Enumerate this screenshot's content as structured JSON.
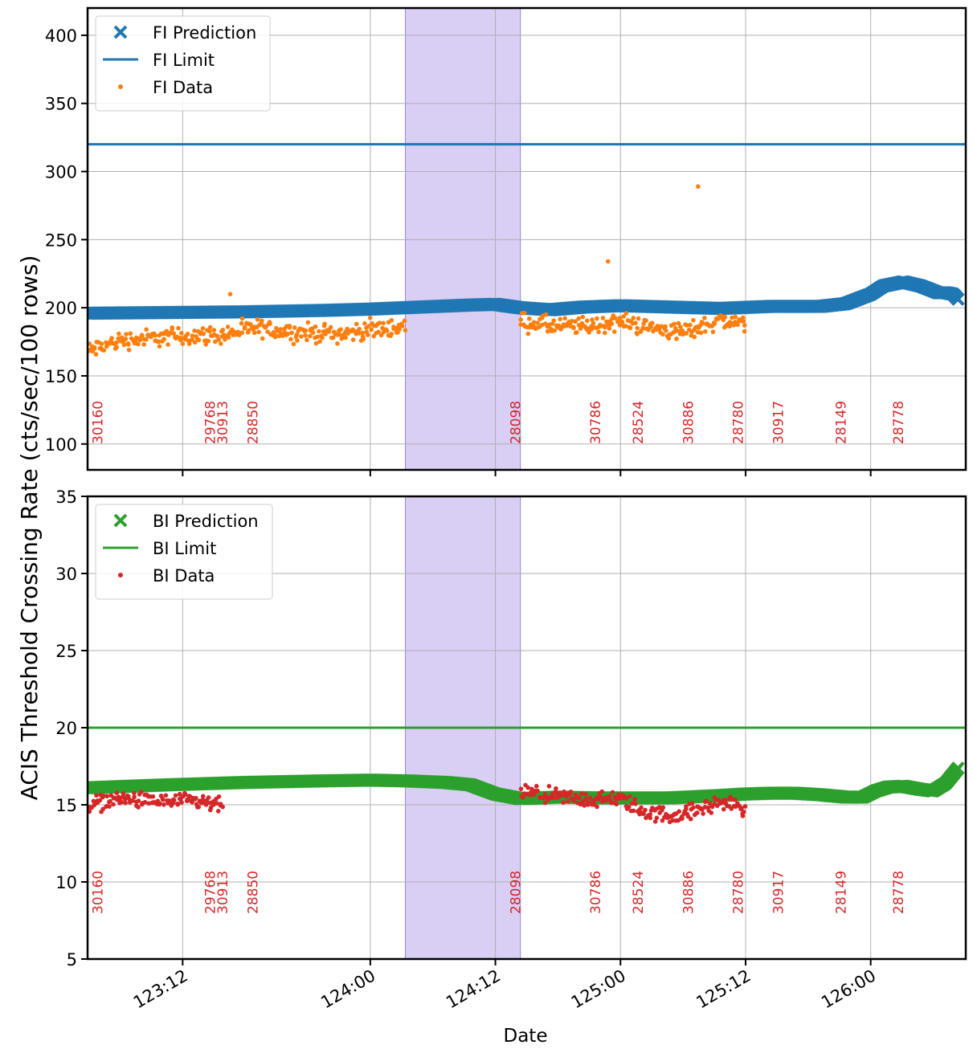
{
  "chart_data": {
    "type": "scatter",
    "xlabel": "Date",
    "ylabel": "ACIS Threshold Crossing Rate (cts/sec/100 rows)",
    "x_unit": "days",
    "xlim": [
      122.87,
      126.38
    ],
    "x_ticks": [
      {
        "value": 123.25,
        "label": "123:12"
      },
      {
        "value": 124.0,
        "label": "124:00"
      },
      {
        "value": 124.5,
        "label": "124:12"
      },
      {
        "value": 125.0,
        "label": "125:00"
      },
      {
        "value": 125.5,
        "label": "125:12"
      },
      {
        "value": 126.0,
        "label": "126:00"
      }
    ],
    "shaded_interval": {
      "start": 124.14,
      "end": 124.6,
      "color": "#9370db"
    },
    "grid": true,
    "legend_position": "upper-left",
    "panels": [
      {
        "name": "FI",
        "ylim": [
          81,
          420
        ],
        "y_ticks": [
          100,
          150,
          200,
          250,
          300,
          350,
          400
        ],
        "legend": [
          "FI Prediction",
          "FI Limit",
          "FI Data"
        ],
        "series": [
          {
            "name": "FI Prediction",
            "color": "#1f77b4",
            "marker": "x",
            "x": [
              122.87,
              123.2,
              123.5,
              123.8,
              124.0,
              124.2,
              124.4,
              124.5,
              124.6,
              124.72,
              124.85,
              125.0,
              125.2,
              125.4,
              125.6,
              125.8,
              125.9,
              126.0,
              126.05,
              126.13,
              126.2,
              126.27,
              126.3,
              126.33,
              126.35
            ],
            "y": [
              196,
              196.5,
              197,
              198,
              199,
              200.5,
              202,
              202.5,
              200,
              198.5,
              200.5,
              201.5,
              200.5,
              199.5,
              201,
              201,
              203,
              210,
              216,
              219,
              216,
              211,
              211,
              210,
              206
            ]
          },
          {
            "name": "FI Limit",
            "color": "#1f77b4",
            "line": true,
            "y": 320
          },
          {
            "name": "FI Data",
            "color": "#ff7f0e",
            "marker": "point",
            "segments": [
              {
                "x": [
                  122.87,
                  123.0,
                  123.2,
                  123.4,
                  123.55,
                  123.7,
                  123.9,
                  124.0,
                  124.14
                ],
                "y": [
                  168,
                  176,
                  179,
                  180,
                  185,
                  182,
                  181,
                  184,
                  186
                ]
              },
              {
                "x": [
                  124.6,
                  124.75,
                  124.9,
                  125.0,
                  125.1,
                  125.25,
                  125.4,
                  125.5
                ],
                "y": [
                  190,
                  186,
                  187,
                  190,
                  186,
                  182,
                  191,
                  188
                ]
              }
            ],
            "outliers": [
              {
                "x": [
                  123.44,
                  124.95,
                  125.31
                ],
                "y": [
                  210,
                  234,
                  289
                ]
              }
            ]
          }
        ],
        "obsids": [
          {
            "x": 122.91,
            "label": "30160"
          },
          {
            "x": 123.36,
            "label": "29768"
          },
          {
            "x": 123.41,
            "label": "30913"
          },
          {
            "x": 123.53,
            "label": "28850"
          },
          {
            "x": 124.58,
            "label": "28098"
          },
          {
            "x": 124.9,
            "label": "30786"
          },
          {
            "x": 125.07,
            "label": "28524"
          },
          {
            "x": 125.27,
            "label": "30886"
          },
          {
            "x": 125.47,
            "label": "28780"
          },
          {
            "x": 125.63,
            "label": "30917"
          },
          {
            "x": 125.88,
            "label": "28149"
          },
          {
            "x": 126.11,
            "label": "28778"
          }
        ]
      },
      {
        "name": "BI",
        "ylim": [
          5,
          35
        ],
        "y_ticks": [
          5,
          10,
          15,
          20,
          25,
          30,
          35
        ],
        "legend": [
          "BI Prediction",
          "BI Limit",
          "BI Data"
        ],
        "series": [
          {
            "name": "BI Prediction",
            "color": "#2ca02c",
            "marker": "x",
            "x": [
              122.87,
              123.2,
              123.5,
              123.8,
              124.0,
              124.15,
              124.3,
              124.4,
              124.5,
              124.6,
              124.75,
              124.9,
              125.0,
              125.2,
              125.4,
              125.5,
              125.6,
              125.7,
              125.8,
              125.9,
              125.97,
              126.02,
              126.07,
              126.13,
              126.2,
              126.25,
              126.3,
              126.35
            ],
            "y": [
              16.1,
              16.3,
              16.45,
              16.55,
              16.6,
              16.55,
              16.45,
              16.3,
              15.7,
              15.4,
              15.5,
              15.45,
              15.45,
              15.45,
              15.6,
              15.7,
              15.75,
              15.75,
              15.65,
              15.5,
              15.5,
              15.9,
              16.15,
              16.2,
              16.0,
              15.9,
              16.4,
              17.4
            ]
          },
          {
            "name": "BI Limit",
            "color": "#2ca02c",
            "line": true,
            "y": 20
          },
          {
            "name": "BI Data",
            "color": "#d62728",
            "marker": "point",
            "segments": [
              {
                "x": [
                  122.87,
                  123.0,
                  123.15,
                  123.3,
                  123.41
                ],
                "y": [
                  15.0,
                  15.4,
                  15.2,
                  15.2,
                  14.9
                ]
              },
              {
                "x": [
                  124.6,
                  124.75,
                  124.9,
                  125.0,
                  125.1,
                  125.2,
                  125.3,
                  125.4,
                  125.5
                ],
                "y": [
                  15.8,
                  15.5,
                  15.3,
                  15.4,
                  14.5,
                  14.3,
                  14.6,
                  15.2,
                  14.8
                ]
              }
            ]
          }
        ],
        "obsids": [
          {
            "x": 122.91,
            "label": "30160"
          },
          {
            "x": 123.36,
            "label": "29768"
          },
          {
            "x": 123.41,
            "label": "30913"
          },
          {
            "x": 123.53,
            "label": "28850"
          },
          {
            "x": 124.58,
            "label": "28098"
          },
          {
            "x": 124.9,
            "label": "30786"
          },
          {
            "x": 125.07,
            "label": "28524"
          },
          {
            "x": 125.27,
            "label": "30886"
          },
          {
            "x": 125.47,
            "label": "28780"
          },
          {
            "x": 125.63,
            "label": "30917"
          },
          {
            "x": 125.88,
            "label": "28149"
          },
          {
            "x": 126.11,
            "label": "28778"
          }
        ]
      }
    ]
  }
}
